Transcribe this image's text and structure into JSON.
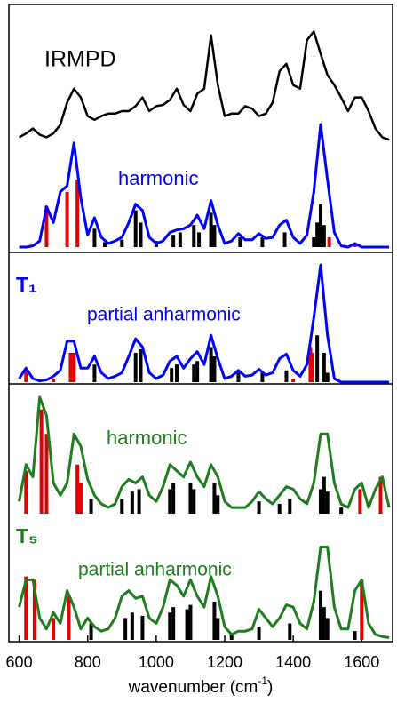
{
  "chart_data": {
    "type": "spectrum",
    "xlim": [
      570,
      1690
    ],
    "xticks": [
      600,
      800,
      1000,
      1200,
      1400,
      1600
    ],
    "xlabel": "wavenumber (cm",
    "xlabel_sup": "-1",
    "xlabel_end": ")",
    "x": [
      600,
      620,
      640,
      660,
      680,
      700,
      720,
      740,
      760,
      780,
      800,
      820,
      840,
      860,
      880,
      900,
      920,
      940,
      960,
      980,
      1000,
      1020,
      1040,
      1060,
      1080,
      1100,
      1120,
      1140,
      1160,
      1180,
      1200,
      1220,
      1240,
      1260,
      1280,
      1300,
      1320,
      1340,
      1360,
      1380,
      1400,
      1420,
      1440,
      1460,
      1480,
      1500,
      1520,
      1540,
      1560,
      1580,
      1600,
      1620,
      1640,
      1660,
      1680
    ],
    "panels": [
      {
        "label": "IRMPD",
        "color": "#000000",
        "ylim": [
          0,
          100
        ],
        "values": [
          4,
          7,
          11,
          6,
          4,
          7,
          14,
          32,
          43,
          36,
          21,
          18,
          21,
          23,
          23,
          25,
          25,
          29,
          36,
          25,
          29,
          30,
          34,
          43,
          30,
          25,
          39,
          43,
          86,
          46,
          21,
          23,
          23,
          29,
          27,
          21,
          23,
          32,
          57,
          63,
          46,
          43,
          82,
          89,
          71,
          54,
          46,
          36,
          25,
          36,
          36,
          25,
          11,
          4,
          2
        ]
      },
      {
        "label": "harmonic",
        "color": "#0000ff",
        "ylim": [
          0,
          100
        ],
        "values": [
          0,
          0,
          1,
          5,
          33,
          20,
          45,
          50,
          85,
          40,
          10,
          24,
          8,
          3,
          5,
          8,
          20,
          35,
          30,
          8,
          3,
          5,
          12,
          14,
          15,
          18,
          26,
          15,
          38,
          18,
          3,
          5,
          11,
          6,
          6,
          11,
          7,
          8,
          18,
          22,
          8,
          3,
          10,
          45,
          100,
          55,
          12,
          1,
          0,
          3,
          0,
          0,
          0,
          0,
          0
        ],
        "sticks": [
          {
            "color": "#e00000",
            "x": [
              680,
              740,
              770,
              1505,
              1580
            ],
            "values": [
              33,
              45,
              55,
              8,
              3
            ]
          },
          {
            "color": "#000000",
            "x": [
              820,
              850,
              900,
              940,
              955,
              1000,
              1050,
              1070,
              1110,
              1125,
              1160,
              1170,
              1245,
              1310,
              1375,
              1460,
              1470,
              1480,
              1490
            ],
            "values": [
              15,
              4,
              6,
              30,
              20,
              5,
              10,
              12,
              18,
              12,
              28,
              18,
              8,
              8,
              12,
              8,
              20,
              35,
              18
            ]
          }
        ]
      },
      {
        "label": "partial anharmonic",
        "color": "#0000ff",
        "ylim": [
          0,
          100
        ],
        "values": [
          3,
          12,
          3,
          1,
          2,
          5,
          10,
          35,
          35,
          12,
          12,
          22,
          8,
          3,
          5,
          8,
          22,
          37,
          30,
          8,
          3,
          6,
          18,
          22,
          12,
          20,
          26,
          15,
          40,
          20,
          3,
          5,
          10,
          5,
          6,
          11,
          6,
          8,
          20,
          24,
          10,
          5,
          15,
          55,
          100,
          40,
          3,
          0,
          0,
          0,
          0,
          0,
          0,
          0,
          0
        ],
        "sticks": [
          {
            "color": "#e00000",
            "x": [
              620,
              700,
              750,
              760,
              1400,
              1450,
              1455
            ],
            "values": [
              10,
              3,
              25,
              25,
              3,
              30,
              25
            ]
          },
          {
            "color": "#000000",
            "x": [
              820,
              940,
              955,
              1045,
              1060,
              1110,
              1120,
              1160,
              1170,
              1240,
              1310,
              1380,
              1470,
              1490,
              1500
            ],
            "values": [
              15,
              25,
              28,
              12,
              15,
              15,
              18,
              30,
              22,
              8,
              8,
              10,
              40,
              25,
              8
            ]
          }
        ]
      },
      {
        "label": "harmonic",
        "color": "#1e7d1e",
        "ylim": [
          0,
          100
        ],
        "values": [
          10,
          40,
          30,
          95,
          80,
          25,
          15,
          25,
          65,
          55,
          28,
          15,
          8,
          5,
          8,
          22,
          28,
          25,
          30,
          15,
          10,
          22,
          40,
          35,
          30,
          42,
          30,
          22,
          40,
          30,
          10,
          5,
          5,
          5,
          10,
          18,
          12,
          8,
          15,
          22,
          20,
          12,
          8,
          25,
          65,
          65,
          25,
          8,
          5,
          20,
          25,
          5,
          20,
          30,
          5
        ],
        "sticks": [
          {
            "color": "#e00000",
            "x": [
              620,
              665,
              680,
              770,
              780,
              1595,
              1655
            ],
            "values": [
              35,
              85,
              65,
              40,
              25,
              20,
              30
            ]
          },
          {
            "color": "#000000",
            "x": [
              810,
              900,
              930,
              950,
              1040,
              1050,
              1100,
              1110,
              1170,
              1180,
              1300,
              1360,
              1390,
              1480,
              1490,
              1500,
              1540
            ],
            "values": [
              12,
              12,
              18,
              20,
              20,
              25,
              25,
              20,
              25,
              15,
              10,
              8,
              12,
              20,
              30,
              18,
              5
            ]
          }
        ]
      },
      {
        "label": "partial anharmonic",
        "color": "#1e7d1e",
        "ylim": [
          0,
          100
        ],
        "values": [
          30,
          55,
          55,
          20,
          10,
          25,
          15,
          45,
          30,
          10,
          20,
          12,
          8,
          10,
          20,
          40,
          45,
          38,
          40,
          20,
          15,
          30,
          55,
          50,
          40,
          55,
          40,
          30,
          58,
          40,
          12,
          5,
          8,
          8,
          10,
          28,
          20,
          12,
          20,
          32,
          30,
          15,
          10,
          35,
          85,
          85,
          30,
          10,
          10,
          45,
          55,
          15,
          5,
          3,
          2
        ],
        "sticks": [
          {
            "color": "#e00000",
            "x": [
              620,
              645,
              700,
              745,
              1600
            ],
            "values": [
              58,
              55,
              20,
              40,
              55
            ]
          },
          {
            "color": "#000000",
            "x": [
              810,
              910,
              930,
              960,
              1040,
              1050,
              1090,
              1100,
              1170,
              1180,
              1220,
              1300,
              1390,
              1480,
              1490,
              1500,
              1580
            ],
            "values": [
              15,
              20,
              25,
              22,
              25,
              30,
              28,
              32,
              35,
              20,
              5,
              12,
              15,
              45,
              30,
              20,
              8
            ]
          }
        ]
      }
    ],
    "groups": [
      {
        "label": "T₁",
        "color": "#0000ff"
      },
      {
        "label": "T₅",
        "color": "#1e7d1e"
      }
    ]
  }
}
